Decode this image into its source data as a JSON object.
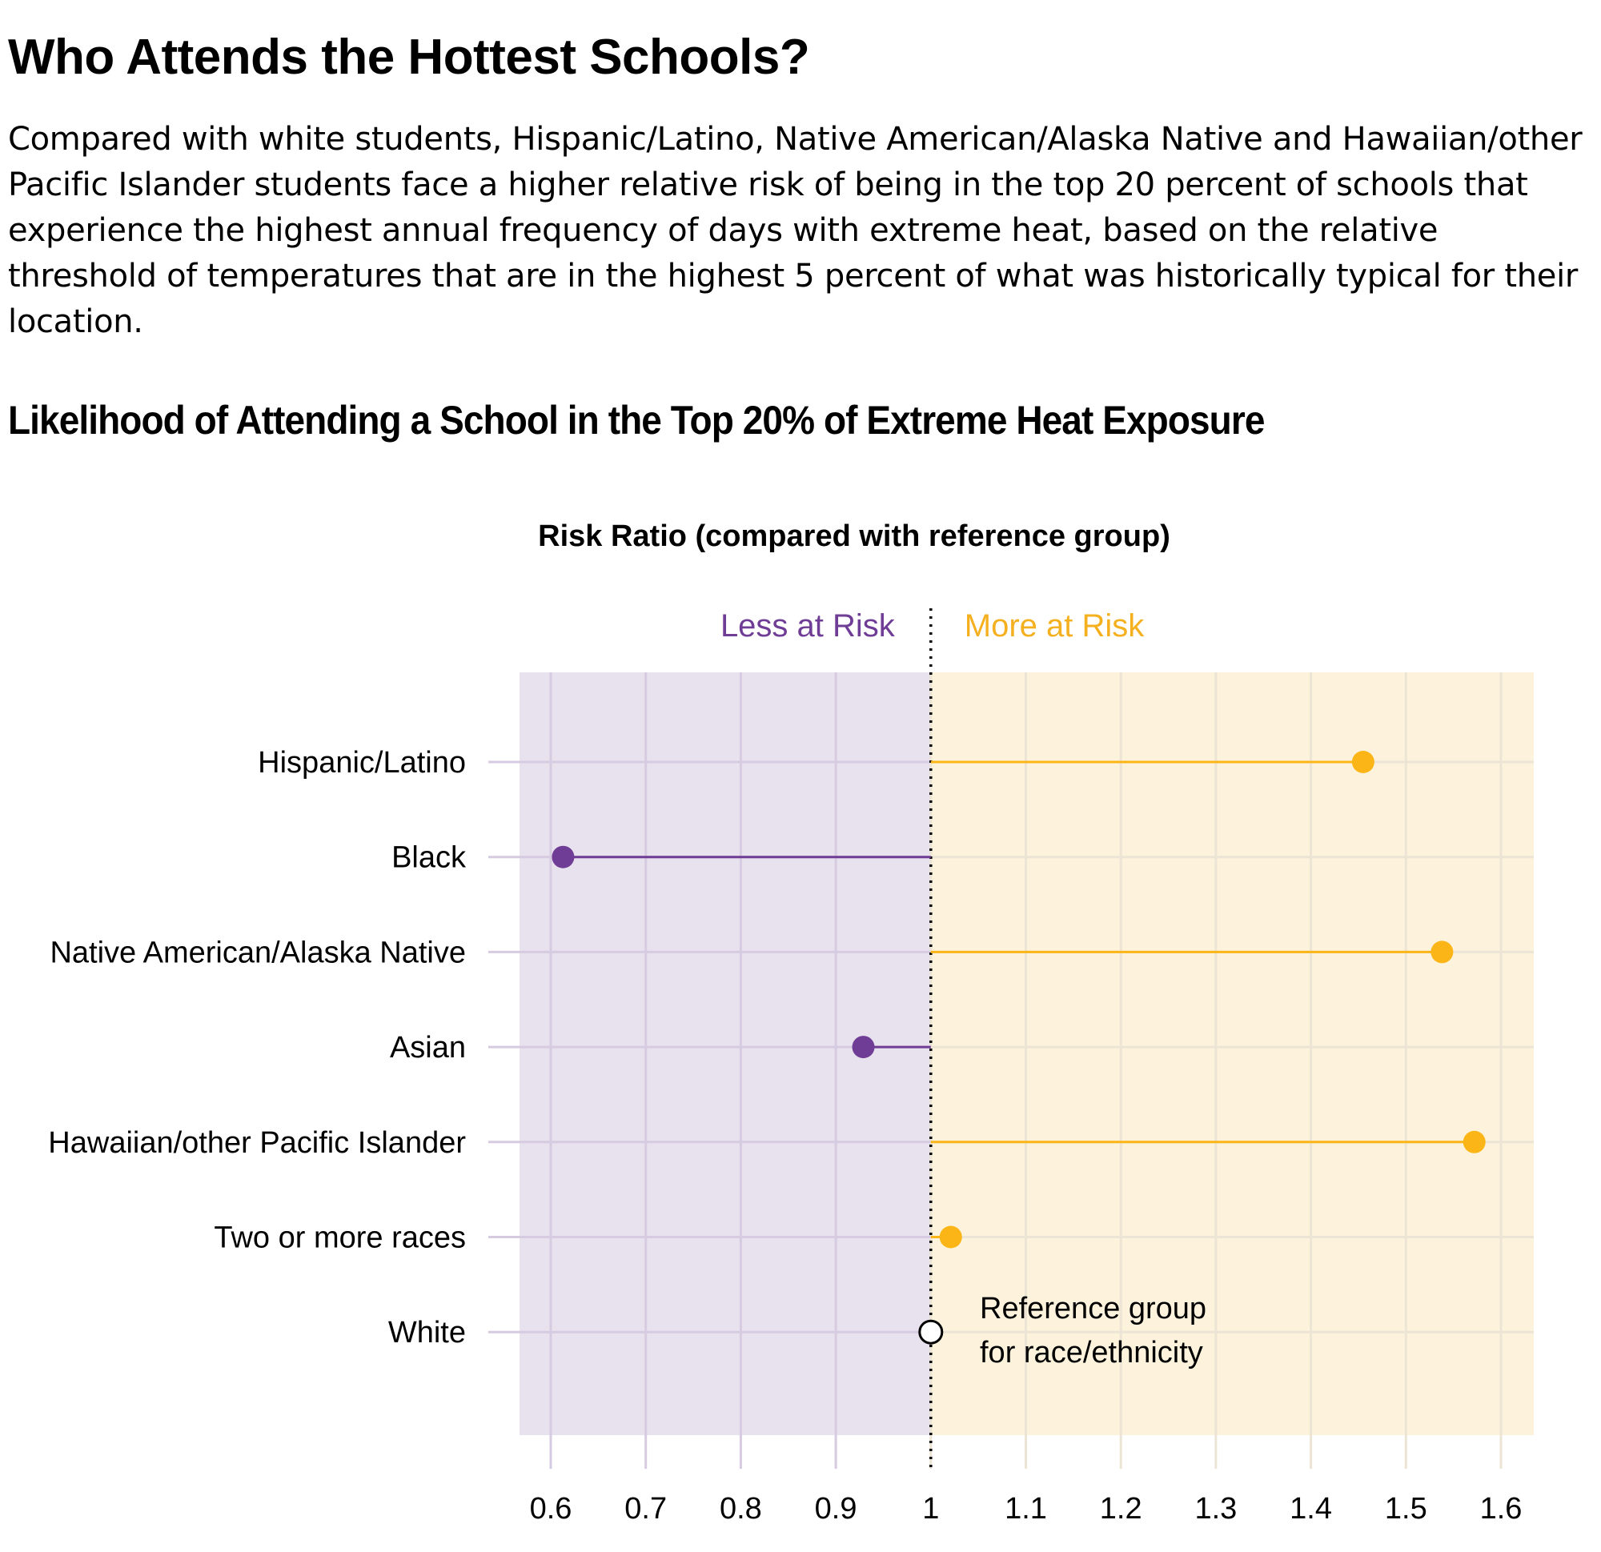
{
  "title": "Who Attends the Hottest Schools?",
  "description": "Compared with white students, Hispanic/Latino, Native American/Alaska Native and Hawaiian/other Pacific Islander students face a higher relative risk of being in the top 20 percent of schools that experience the highest annual frequency of days with extreme heat, based on the relative threshold of temperatures that are in the highest 5 percent of what was historically typical for their location.",
  "chart_data": {
    "type": "lollipop",
    "title": "Likelihood of Attending a School in the Top 20% of Extreme Heat Exposure",
    "xlabel": "Risk Ratio (compared with reference group)",
    "xlim": [
      0.565,
      1.635
    ],
    "reference": 1,
    "xticks": [
      0.6,
      0.7,
      0.8,
      0.9,
      1,
      1.1,
      1.2,
      1.3,
      1.4,
      1.5,
      1.6
    ],
    "region_labels": {
      "less": "Less at Risk",
      "more": "More at Risk"
    },
    "categories": [
      "Hispanic/Latino",
      "Black",
      "Native American/Alaska Native",
      "Asian",
      "Hawaiian/other Pacific Islander",
      "Two or more races",
      "White"
    ],
    "values": [
      1.455,
      0.613,
      1.538,
      0.929,
      1.572,
      1.021,
      1.0
    ],
    "annotation": [
      "Reference group",
      "for race/ethnicity"
    ],
    "colors": {
      "less": "#6f3d96",
      "more": "#fbb516",
      "less_bg": "#e8e1ee",
      "more_bg": "#fdf3dd"
    }
  }
}
